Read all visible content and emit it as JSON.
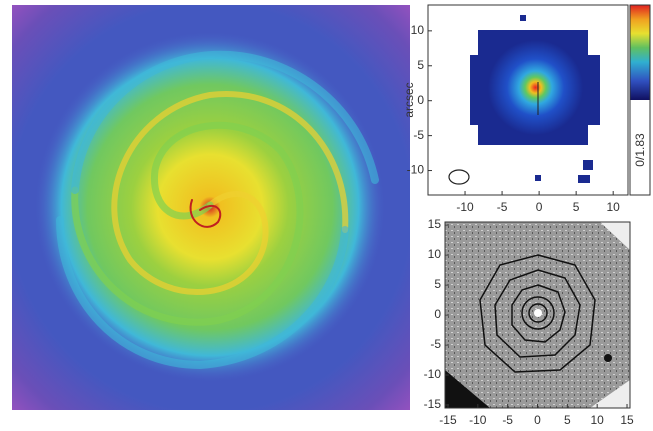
{
  "chart_data": [
    {
      "type": "image",
      "ylabel": "arcsec",
      "colorbar_label": "0/1.83",
      "xlim": [
        -15,
        12
      ],
      "ylim": [
        -13.5,
        13.7
      ],
      "xticks": [
        -10,
        -5,
        0,
        5,
        10
      ],
      "yticks": [
        10,
        5,
        0,
        -5,
        -10
      ]
    },
    {
      "type": "image",
      "xlim": [
        -15.5,
        15.5
      ],
      "ylim": [
        -15.5,
        15.5
      ],
      "xticks": [
        -15,
        -10,
        -5,
        0,
        5,
        10,
        15
      ],
      "yticks": [
        15,
        10,
        5,
        0,
        -5,
        -10,
        -15
      ]
    }
  ]
}
